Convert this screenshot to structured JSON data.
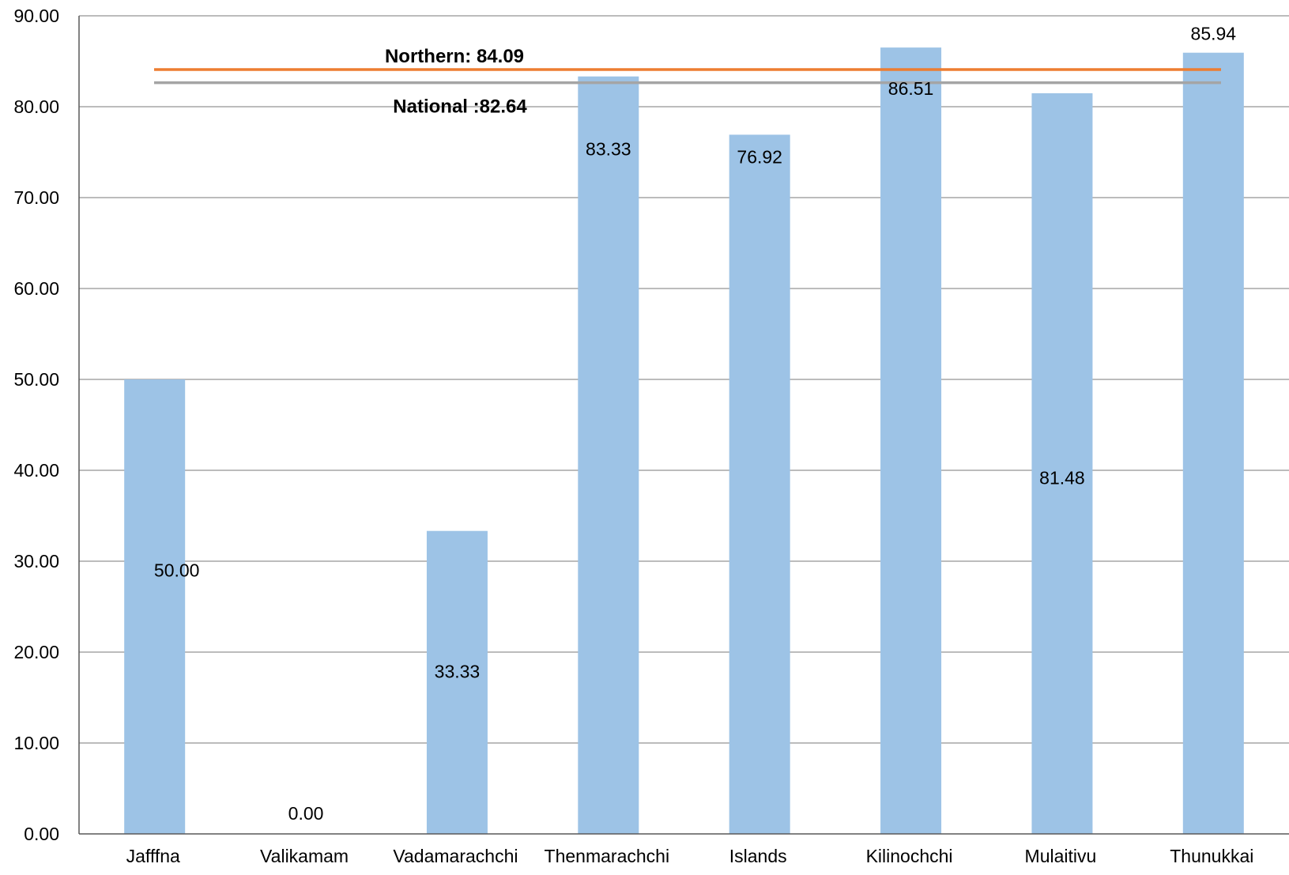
{
  "chart_data": {
    "type": "bar",
    "title": "",
    "xlabel": "",
    "ylabel": "",
    "ylim": [
      0,
      90
    ],
    "yticks": [
      "0.00",
      "10.00",
      "20.00",
      "30.00",
      "40.00",
      "50.00",
      "60.00",
      "70.00",
      "80.00",
      "90.00"
    ],
    "categories": [
      "Jafffna",
      "Valikamam",
      "Vadamarachchi",
      "Thenmarachchi",
      "Islands",
      "Kilinochchi",
      "Mulaitivu",
      "Thunukkai"
    ],
    "values": [
      50.0,
      0.0,
      33.33,
      83.33,
      76.92,
      86.51,
      81.48,
      85.94
    ],
    "data_labels": [
      "50.00",
      "0.00",
      "33.33",
      "83.33",
      "76.92",
      "86.51",
      "81.48",
      "85.94"
    ],
    "grid": true,
    "legend": "none",
    "reference_lines": [
      {
        "label": "Northern: 84.09",
        "value": 84.09,
        "color": "#ED7D31"
      },
      {
        "label": "National :82.64",
        "value": 82.64,
        "color": "#A5A5A5"
      }
    ],
    "colors": {
      "bar": "#9DC3E6",
      "grid": "#A6A6A6",
      "axis": "#595959"
    }
  }
}
